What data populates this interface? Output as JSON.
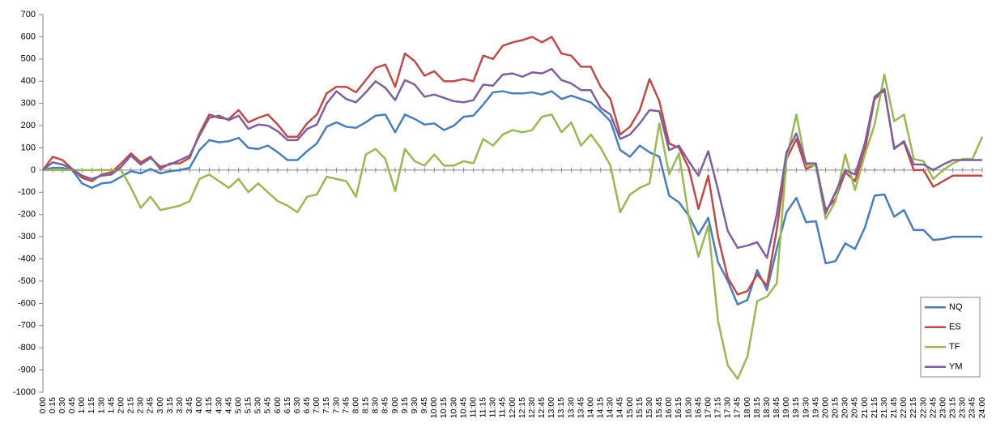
{
  "chart_data": {
    "type": "line",
    "categories": [
      "0:00",
      "0:15",
      "0:30",
      "0:45",
      "1:00",
      "1:15",
      "1:30",
      "1:45",
      "2:00",
      "2:15",
      "2:30",
      "2:45",
      "3:00",
      "3:15",
      "3:30",
      "3:45",
      "4:00",
      "4:15",
      "4:30",
      "4:45",
      "5:00",
      "5:15",
      "5:30",
      "5:45",
      "6:00",
      "6:15",
      "6:30",
      "6:45",
      "7:00",
      "7:15",
      "7:30",
      "7:45",
      "8:00",
      "8:15",
      "8:30",
      "8:45",
      "9:00",
      "9:15",
      "9:30",
      "9:45",
      "10:00",
      "10:15",
      "10:30",
      "10:45",
      "11:00",
      "11:15",
      "11:30",
      "11:45",
      "12:00",
      "12:15",
      "12:30",
      "12:45",
      "13:00",
      "13:15",
      "13:30",
      "13:45",
      "14:00",
      "14:15",
      "14:30",
      "14:45",
      "15:00",
      "15:15",
      "15:30",
      "15:45",
      "16:00",
      "16:15",
      "16:30",
      "16:45",
      "17:00",
      "17:15",
      "17:30",
      "17:45",
      "18:00",
      "18:15",
      "18:30",
      "18:45",
      "19:00",
      "19:15",
      "19:30",
      "19:45",
      "20:00",
      "20:15",
      "20:30",
      "20:45",
      "21:00",
      "21:15",
      "21:30",
      "21:45",
      "22:00",
      "22:15",
      "22:30",
      "22:45",
      "23:00",
      "23:15",
      "23:30",
      "23:45",
      "24:00"
    ],
    "series": [
      {
        "name": "NQ",
        "color": "#4a7ebb",
        "values": [
          0,
          10,
          10,
          0,
          -60,
          -80,
          -60,
          -55,
          -30,
          -5,
          -15,
          5,
          -15,
          -5,
          0,
          10,
          90,
          135,
          125,
          130,
          145,
          100,
          95,
          110,
          80,
          45,
          45,
          85,
          120,
          195,
          215,
          195,
          190,
          215,
          245,
          250,
          170,
          250,
          230,
          205,
          210,
          180,
          200,
          240,
          245,
          295,
          350,
          355,
          345,
          345,
          350,
          340,
          355,
          320,
          335,
          320,
          305,
          265,
          220,
          90,
          60,
          110,
          80,
          60,
          -115,
          -145,
          -205,
          -290,
          -215,
          -415,
          -500,
          -605,
          -585,
          -450,
          -540,
          -355,
          -190,
          -125,
          -235,
          -230,
          -420,
          -410,
          -330,
          -355,
          -260,
          -115,
          -110,
          -210,
          -180,
          -270,
          -270,
          -315,
          -310,
          -300,
          -300,
          -300,
          -300
        ]
      },
      {
        "name": "ES",
        "color": "#be4b48",
        "values": [
          0,
          60,
          45,
          5,
          -35,
          -50,
          -20,
          -10,
          30,
          75,
          35,
          60,
          5,
          30,
          30,
          55,
          165,
          250,
          235,
          230,
          270,
          215,
          235,
          250,
          205,
          150,
          150,
          210,
          250,
          345,
          375,
          375,
          350,
          405,
          460,
          475,
          375,
          525,
          490,
          425,
          445,
          400,
          400,
          410,
          400,
          515,
          500,
          560,
          575,
          585,
          600,
          575,
          600,
          525,
          515,
          465,
          465,
          375,
          320,
          160,
          195,
          270,
          410,
          310,
          120,
          100,
          10,
          -175,
          -25,
          -300,
          -485,
          -560,
          -545,
          -470,
          -520,
          -270,
          50,
          140,
          5,
          25,
          -180,
          -130,
          -10,
          -50,
          90,
          320,
          360,
          100,
          125,
          0,
          0,
          -75,
          -50,
          -25,
          -25,
          -25,
          -25
        ]
      },
      {
        "name": "TF",
        "color": "#98b954",
        "values": [
          0,
          0,
          0,
          0,
          0,
          0,
          0,
          0,
          0,
          -80,
          -170,
          -120,
          -180,
          -170,
          -160,
          -140,
          -40,
          -20,
          -50,
          -80,
          -40,
          -100,
          -60,
          -100,
          -140,
          -160,
          -190,
          -120,
          -110,
          -30,
          -40,
          -50,
          -120,
          70,
          95,
          50,
          -95,
          95,
          40,
          20,
          70,
          20,
          20,
          40,
          30,
          140,
          110,
          160,
          180,
          170,
          180,
          240,
          250,
          170,
          215,
          110,
          160,
          100,
          20,
          -190,
          -110,
          -80,
          -60,
          210,
          -20,
          75,
          -210,
          -390,
          -250,
          -680,
          -880,
          -940,
          -840,
          -590,
          -570,
          -510,
          50,
          250,
          20,
          20,
          -220,
          -140,
          70,
          -90,
          70,
          205,
          430,
          220,
          250,
          50,
          40,
          -40,
          0,
          30,
          50,
          50,
          150
        ]
      },
      {
        "name": "YM",
        "color": "#7d60a0",
        "values": [
          0,
          35,
          25,
          5,
          -25,
          -40,
          -25,
          -20,
          15,
          65,
          25,
          55,
          15,
          25,
          45,
          65,
          155,
          235,
          245,
          225,
          245,
          185,
          205,
          200,
          175,
          135,
          135,
          185,
          205,
          300,
          355,
          320,
          305,
          350,
          400,
          370,
          315,
          405,
          385,
          330,
          340,
          325,
          310,
          305,
          315,
          385,
          380,
          430,
          435,
          420,
          440,
          435,
          455,
          405,
          390,
          360,
          360,
          280,
          250,
          140,
          160,
          210,
          270,
          265,
          90,
          110,
          40,
          -25,
          85,
          -90,
          -275,
          -350,
          -340,
          -325,
          -395,
          -200,
          80,
          165,
          30,
          30,
          -195,
          -100,
          0,
          -20,
          120,
          330,
          365,
          95,
          130,
          25,
          25,
          0,
          25,
          45,
          45,
          45,
          45
        ]
      }
    ],
    "ylim": [
      -1000,
      700
    ],
    "yticks": [
      -1000,
      -900,
      -800,
      -700,
      -600,
      -500,
      -400,
      -300,
      -200,
      -100,
      0,
      100,
      200,
      300,
      400,
      500,
      600,
      700
    ],
    "legend": "lower right"
  }
}
